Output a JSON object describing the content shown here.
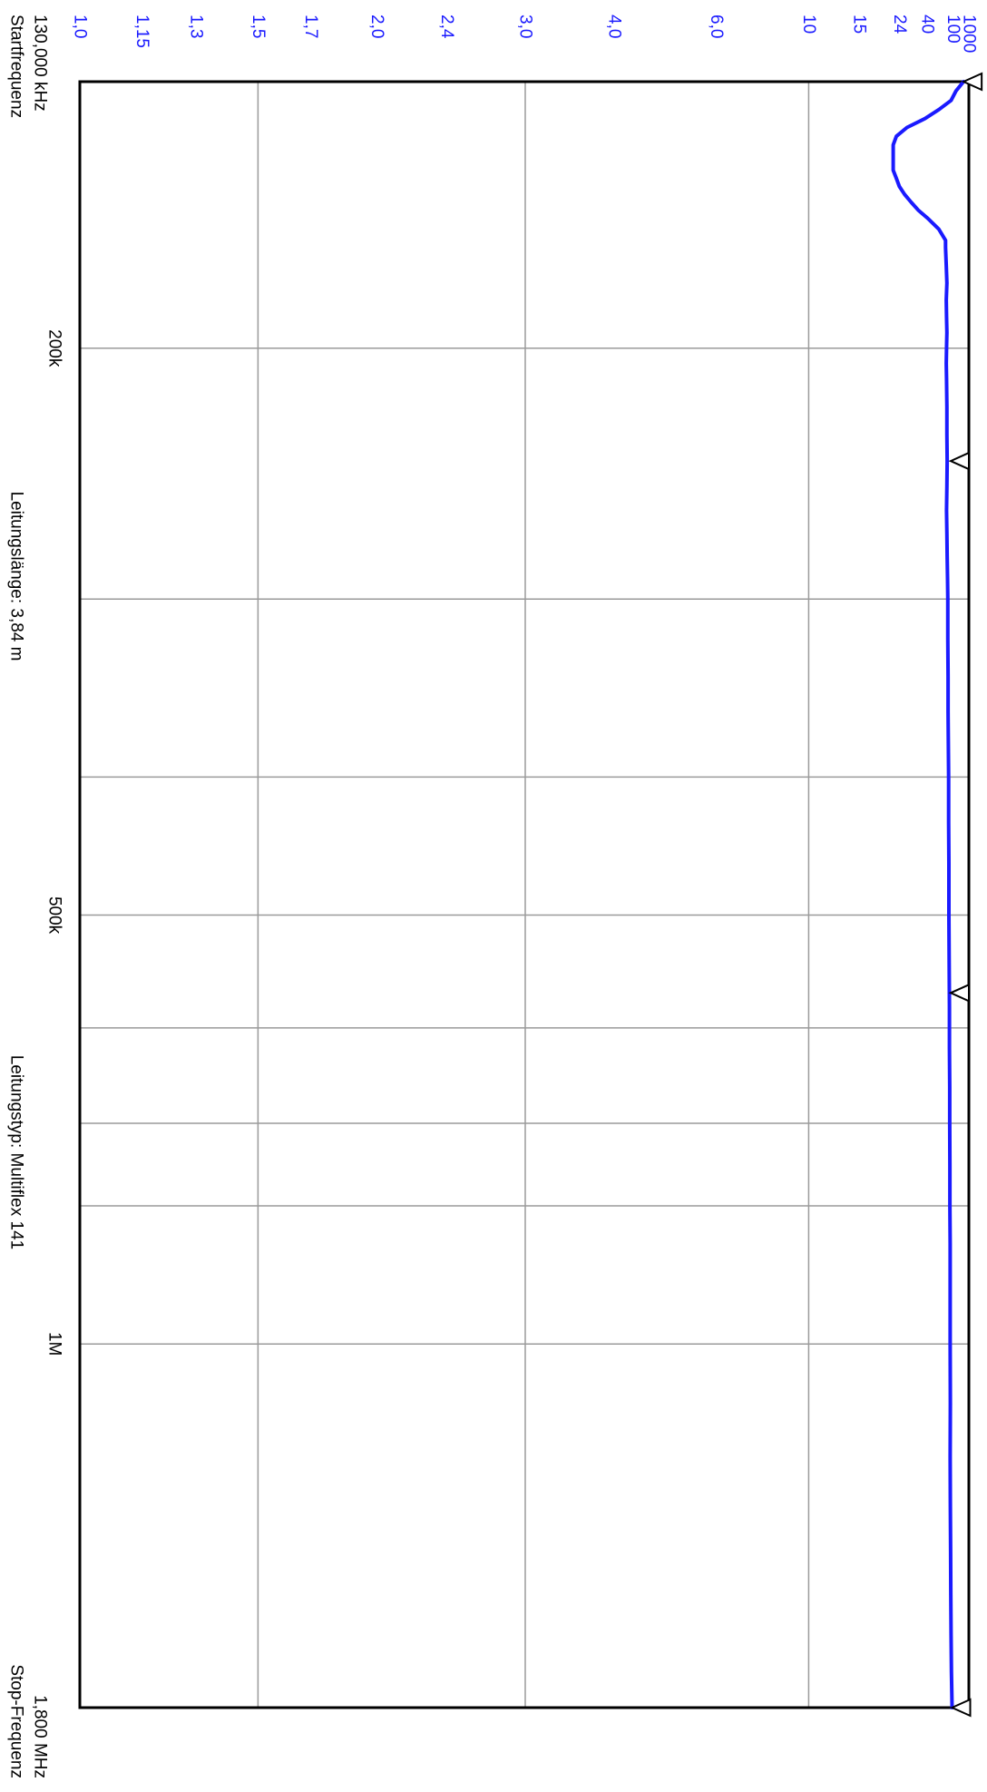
{
  "chart_data": {
    "type": "line",
    "title": "",
    "x_axis": {
      "scale": "log",
      "range": [
        130,
        1800
      ],
      "unit": "kHz",
      "start_label": "130,000 kHz",
      "start_caption": "Startfrequenz",
      "stop_label": "1,800 MHz",
      "stop_caption": "Stop-Frequenz",
      "tick_labels": [
        {
          "value": 200,
          "label": "200k"
        },
        {
          "value": 500,
          "label": "500k"
        },
        {
          "value": 1000,
          "label": "1M"
        }
      ],
      "gridlines": [
        200,
        300,
        400,
        500,
        600,
        700,
        800,
        1000
      ]
    },
    "y_axis": {
      "quantity": "SWR",
      "scale": "reflection",
      "range": [
        1.0,
        1000
      ],
      "tick_labels": [
        "1,0",
        "1,15",
        "1,3",
        "1,5",
        "1,7",
        "2,0",
        "2,4",
        "3,0",
        "4,0",
        "6,0",
        "10",
        "15",
        "24",
        "40",
        "100",
        "1000"
      ],
      "tick_values": [
        1.0,
        1.15,
        1.3,
        1.5,
        1.7,
        2.0,
        2.4,
        3.0,
        4.0,
        6.0,
        10,
        15,
        24,
        40,
        100,
        1000
      ],
      "gridlines": [
        1.5,
        3.0,
        10
      ]
    },
    "annotations": {
      "line_length": "Leitungslänge: 3,84 m",
      "line_type": "Leitungstyp: Multiflex 141"
    },
    "marker_frequencies_khz": [
      130,
      240,
      567,
      1800
    ],
    "grid": true,
    "series": [
      {
        "color": "#1a1aff",
        "x": [
          130,
          132,
          134,
          136,
          138,
          140,
          142,
          144,
          146,
          148,
          150,
          152,
          154,
          156,
          158,
          160,
          162,
          165,
          168,
          170,
          175,
          180,
          185,
          190,
          195,
          200,
          205,
          210,
          220,
          230,
          240,
          250,
          260,
          270,
          280,
          290,
          300,
          320,
          340,
          360,
          380,
          400,
          430,
          460,
          500,
          540,
          580,
          620,
          660,
          700,
          750,
          800,
          850,
          900,
          1000,
          1100,
          1200,
          1300,
          1400,
          1500,
          1600,
          1700,
          1800
        ],
        "y": [
          250,
          120,
          90,
          55,
          38,
          27,
          23,
          22,
          22,
          22,
          22,
          23,
          24,
          26,
          29,
          33,
          40,
          55,
          70,
          70,
          72,
          74,
          72,
          73,
          74,
          73,
          72,
          73,
          74,
          74,
          75,
          74,
          73,
          74,
          75,
          76,
          77,
          77,
          78,
          78,
          79,
          80,
          80,
          81,
          81,
          82,
          83,
          83,
          84,
          84,
          85,
          85,
          86,
          86,
          86,
          87,
          86,
          87,
          88,
          89,
          90,
          92,
          95
        ]
      }
    ]
  }
}
